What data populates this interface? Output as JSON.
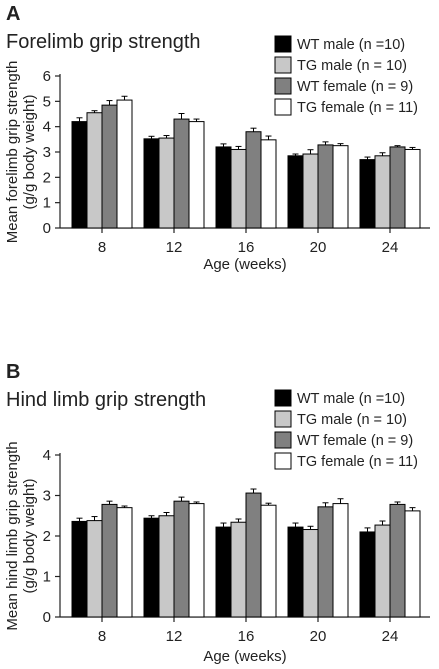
{
  "chart_data": [
    {
      "type": "bar",
      "panel": "A",
      "title": "Forelimb grip strength",
      "xlabel": "Age (weeks)",
      "ylabel": [
        "Mean forelimb grip strength",
        "(g/g body weight)"
      ],
      "ylim": [
        0,
        6
      ],
      "yticks": [
        "0",
        "1",
        "2",
        "3",
        "4",
        "5",
        "6"
      ],
      "categories": [
        "8",
        "12",
        "16",
        "20",
        "24"
      ],
      "grid": false,
      "legend": "top-right",
      "series": [
        {
          "name": "WT male (n =10)",
          "color": "#000000",
          "values": [
            4.2,
            3.52,
            3.2,
            2.85,
            2.7
          ],
          "errors": [
            0.15,
            0.1,
            0.12,
            0.07,
            0.1
          ]
        },
        {
          "name": "TG male (n = 10)",
          "color": "#c8c8c8",
          "values": [
            4.55,
            3.55,
            3.1,
            2.92,
            2.85
          ],
          "errors": [
            0.08,
            0.1,
            0.12,
            0.17,
            0.12
          ]
        },
        {
          "name": "WT female (n = 9)",
          "color": "#808080",
          "values": [
            4.85,
            4.3,
            3.8,
            3.28,
            3.2
          ],
          "errors": [
            0.18,
            0.22,
            0.14,
            0.12,
            0.05
          ]
        },
        {
          "name": "TG female (n = 11)",
          "color": "#ffffff",
          "values": [
            5.05,
            4.2,
            3.48,
            3.25,
            3.1
          ],
          "errors": [
            0.15,
            0.1,
            0.15,
            0.08,
            0.08
          ]
        }
      ]
    },
    {
      "type": "bar",
      "panel": "B",
      "title": "Hind limb grip strength",
      "xlabel": "Age (weeks)",
      "ylabel": [
        "Mean hind limb grip strength",
        "(g/g body weight)"
      ],
      "ylim": [
        0,
        4
      ],
      "yticks": [
        "0",
        "1",
        "2",
        "3",
        "4"
      ],
      "categories": [
        "8",
        "12",
        "16",
        "20",
        "24"
      ],
      "grid": false,
      "legend": "top-right",
      "series": [
        {
          "name": "WT male (n =10)",
          "color": "#000000",
          "values": [
            2.36,
            2.44,
            2.22,
            2.22,
            2.1
          ],
          "errors": [
            0.08,
            0.06,
            0.1,
            0.1,
            0.1
          ]
        },
        {
          "name": "TG male (n = 10)",
          "color": "#c8c8c8",
          "values": [
            2.38,
            2.5,
            2.34,
            2.16,
            2.27
          ],
          "errors": [
            0.1,
            0.08,
            0.08,
            0.08,
            0.1
          ]
        },
        {
          "name": "WT female (n = 9)",
          "color": "#808080",
          "values": [
            2.78,
            2.86,
            3.06,
            2.72,
            2.78
          ],
          "errors": [
            0.08,
            0.1,
            0.1,
            0.1,
            0.06
          ]
        },
        {
          "name": "TG female (n = 11)",
          "color": "#ffffff",
          "values": [
            2.7,
            2.8,
            2.76,
            2.8,
            2.62
          ],
          "errors": [
            0.04,
            0.04,
            0.05,
            0.12,
            0.08
          ]
        }
      ]
    }
  ]
}
